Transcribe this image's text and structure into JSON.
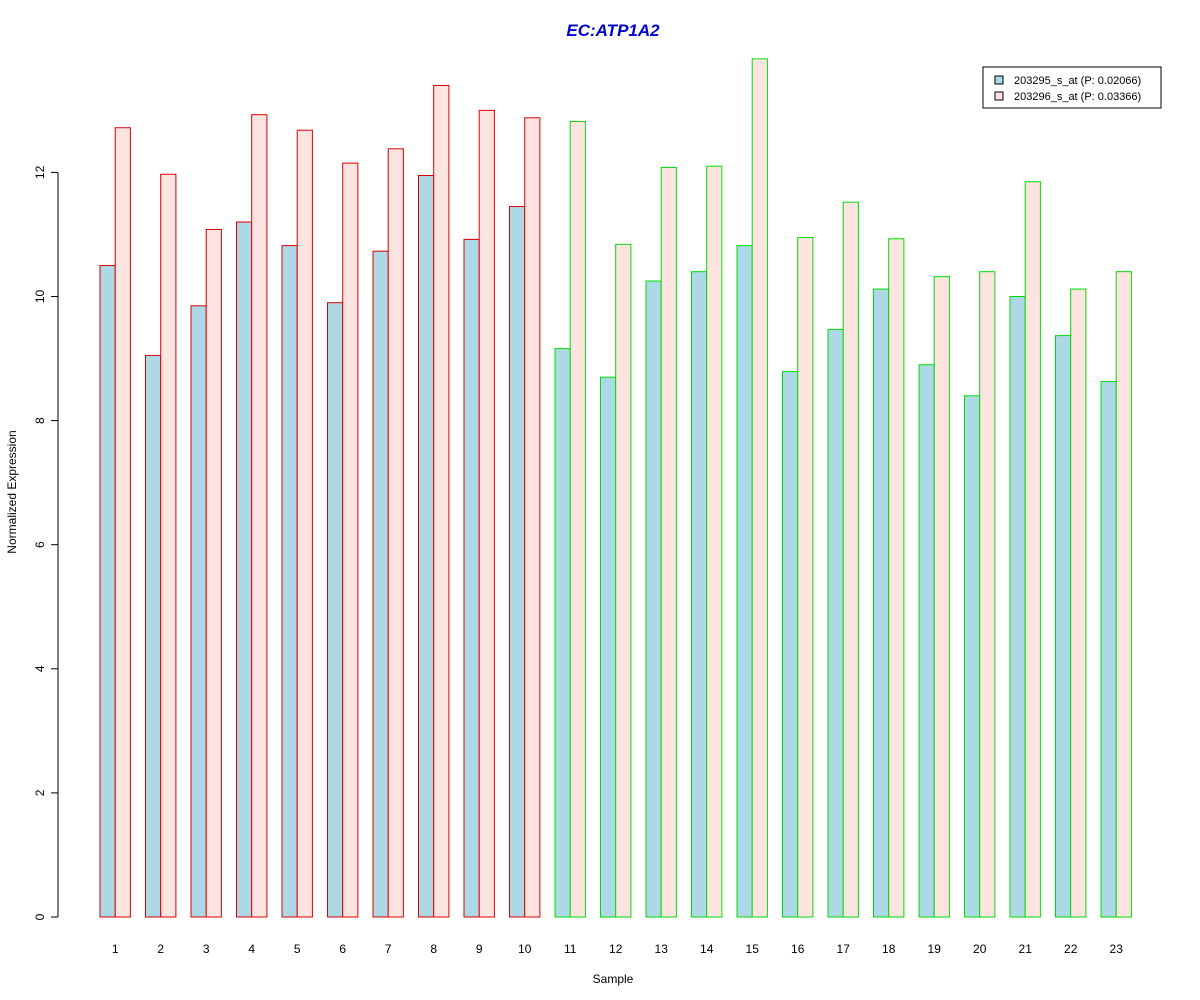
{
  "chart_data": {
    "type": "bar",
    "title": "EC:ATP1A2",
    "xlabel": "Sample",
    "ylabel": "Normalized Expression",
    "ylim": [
      0,
      13.8
    ],
    "yticks": [
      "0",
      "2",
      "4",
      "6",
      "8",
      "10",
      "12"
    ],
    "categories": [
      "1",
      "2",
      "3",
      "4",
      "5",
      "6",
      "7",
      "8",
      "9",
      "10",
      "11",
      "12",
      "13",
      "14",
      "15",
      "16",
      "17",
      "18",
      "19",
      "20",
      "21",
      "22",
      "23"
    ],
    "series": [
      {
        "name": "203295_s_at (P: 0.02066)",
        "fill": "#add8e6",
        "values": [
          10.5,
          9.05,
          9.85,
          11.2,
          10.82,
          9.9,
          10.73,
          11.95,
          10.92,
          11.45,
          9.16,
          8.7,
          10.25,
          10.4,
          10.82,
          8.79,
          9.47,
          10.12,
          8.9,
          8.4,
          10.0,
          9.37,
          8.63
        ]
      },
      {
        "name": "203296_s_at (P: 0.03366)",
        "fill": "#fde4e1",
        "values": [
          12.72,
          11.97,
          11.08,
          12.93,
          12.68,
          12.15,
          12.38,
          13.4,
          13.0,
          12.88,
          12.82,
          10.84,
          12.08,
          12.1,
          13.83,
          10.95,
          11.52,
          10.93,
          10.32,
          10.4,
          11.85,
          10.12,
          10.4
        ]
      }
    ],
    "group_outline_colors": [
      "#dd0000",
      "#dd0000",
      "#dd0000",
      "#dd0000",
      "#dd0000",
      "#dd0000",
      "#dd0000",
      "#dd0000",
      "#dd0000",
      "#dd0000",
      "#00dd00",
      "#00dd00",
      "#00dd00",
      "#00dd00",
      "#00dd00",
      "#00dd00",
      "#00dd00",
      "#00dd00",
      "#00dd00",
      "#00dd00",
      "#00dd00",
      "#00dd00",
      "#00dd00"
    ],
    "grid": false,
    "legend_position": "top-right"
  }
}
